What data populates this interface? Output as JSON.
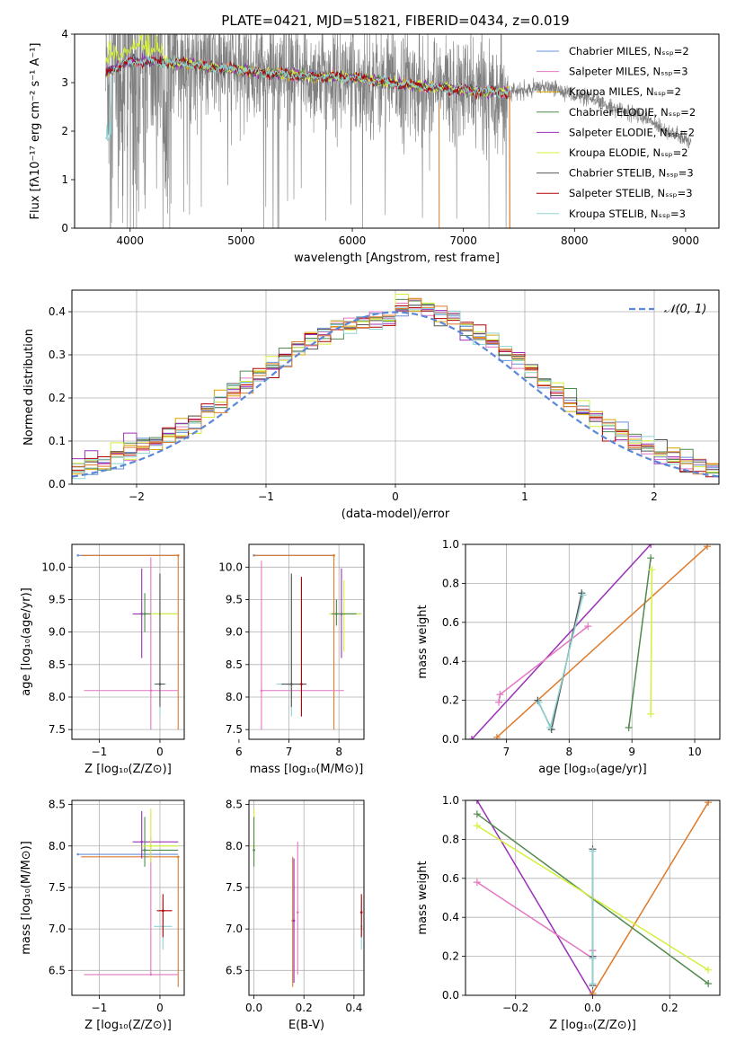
{
  "colors": {
    "chabrier_miles": "#6a8fd8",
    "salpeter_miles": "#e377c2",
    "kroupa_miles": "#d9a400",
    "chabrier_elodie": "#4f8a4f",
    "salpeter_elodie": "#9b30b8",
    "kroupa_elodie": "#d4ef3a",
    "chabrier_stelib": "#555555",
    "salpeter_stelib": "#b00000",
    "kroupa_stelib": "#8fd4d4",
    "orange": "#dd7a2b",
    "data": "#808080",
    "gauss": "#5b87d8"
  },
  "chart_data": [
    {
      "id": "spectrum",
      "type": "line",
      "title": "PLATE=0421, MJD=51821, FIBERID=0434, z=0.019",
      "xlabel": "wavelength [Angstrom, rest frame]",
      "ylabel": "Flux [fλ10⁻¹⁷ erg cm⁻² s⁻¹ A⁻¹]",
      "xlim": [
        3500,
        9300
      ],
      "ylim": [
        0,
        4
      ],
      "xticks": [
        "4000",
        "5000",
        "6000",
        "7000",
        "8000",
        "9000"
      ],
      "yticks": [
        "0",
        "1",
        "2",
        "3",
        "4"
      ],
      "grid": false,
      "legend_position": "top-right",
      "legend": [
        {
          "label": "Chabrier MILES, Nₛₛₚ=2",
          "color_key": "chabrier_miles"
        },
        {
          "label": "Salpeter MILES, Nₛₛₚ=3",
          "color_key": "salpeter_miles"
        },
        {
          "label": "Kroupa MILES, Nₛₛₚ=2",
          "color_key": "kroupa_miles"
        },
        {
          "label": "Chabrier ELODIE, Nₛₛₚ=2",
          "color_key": "chabrier_elodie"
        },
        {
          "label": "Salpeter ELODIE, Nₛₛₚ=2",
          "color_key": "salpeter_elodie"
        },
        {
          "label": "Kroupa ELODIE, Nₛₛₚ=2",
          "color_key": "kroupa_elodie"
        },
        {
          "label": "Chabrier STELIB, Nₛₛₚ=3",
          "color_key": "chabrier_stelib"
        },
        {
          "label": "Salpeter STELIB, Nₛₛₚ=3",
          "color_key": "salpeter_stelib"
        },
        {
          "label": "Kroupa STELIB, Nₛₛₚ=3",
          "color_key": "kroupa_stelib"
        }
      ],
      "data_range": [
        3780,
        9050
      ],
      "model_range": [
        3780,
        7420
      ],
      "continuum": [
        [
          3780,
          3.2
        ],
        [
          4000,
          3.45
        ],
        [
          4500,
          3.4
        ],
        [
          5000,
          3.25
        ],
        [
          5500,
          3.15
        ],
        [
          6000,
          3.1
        ],
        [
          6500,
          2.95
        ],
        [
          7000,
          2.85
        ],
        [
          7400,
          2.8
        ],
        [
          7800,
          2.9
        ],
        [
          8200,
          2.6
        ],
        [
          8600,
          2.3
        ],
        [
          9050,
          1.75
        ]
      ]
    },
    {
      "id": "residuals",
      "type": "line",
      "xlabel": "(data-model)/error",
      "ylabel": "Normed distribution",
      "xlim": [
        -2.5,
        2.5
      ],
      "ylim": [
        0,
        0.45
      ],
      "xticks": [
        "−2",
        "−1",
        "0",
        "1",
        "2"
      ],
      "yticks": [
        "0.0",
        "0.1",
        "0.2",
        "0.3",
        "0.4"
      ],
      "grid": true,
      "legend_position": "top-right",
      "legend": [
        {
          "label": "𝒩(0, 1)",
          "color_key": "gauss"
        }
      ],
      "bin_width": 0.1
    },
    {
      "id": "age_vs_Z",
      "type": "errorbar",
      "xlabel": "Z [log₁₀(Z/Z⊙)]",
      "ylabel": "age  [log₁₀(age/yr)]",
      "xlim": [
        -1.45,
        0.4
      ],
      "ylim": [
        7.35,
        10.35
      ],
      "xticks": [
        "−1",
        "0"
      ],
      "yticks": [
        "7.5",
        "8.0",
        "8.5",
        "9.0",
        "9.5",
        "10.0"
      ],
      "grid": true,
      "points": [
        {
          "c": "chabrier_miles",
          "x": -1.35,
          "x0": -1.35,
          "x1": 0.3,
          "y": 10.18,
          "y0": 10.18,
          "y1": 10.18
        },
        {
          "c": "orange",
          "x": 0.3,
          "x0": -1.3,
          "x1": 0.3,
          "y": 10.18,
          "y0": 7.5,
          "y1": 10.18
        },
        {
          "c": "salpeter_miles",
          "x": -0.15,
          "x0": -1.25,
          "x1": 0.3,
          "y": 8.1,
          "y0": 7.5,
          "y1": 10.15
        },
        {
          "c": "salpeter_elodie",
          "x": -0.3,
          "x0": -0.45,
          "x1": -0.15,
          "y": 9.28,
          "y0": 8.6,
          "y1": 9.98
        },
        {
          "c": "chabrier_elodie",
          "x": -0.25,
          "x0": -0.3,
          "x1": 0.3,
          "y": 9.28,
          "y0": 9.0,
          "y1": 9.6
        },
        {
          "c": "kroupa_elodie",
          "x": 0.0,
          "x0": -0.15,
          "x1": 0.3,
          "y": 9.28,
          "y0": 8.9,
          "y1": 9.9
        },
        {
          "c": "kroupa_stelib",
          "x": 0.0,
          "x0": -0.1,
          "x1": 0.1,
          "y": 8.2,
          "y0": 7.7,
          "y1": 9.85
        },
        {
          "c": "chabrier_stelib",
          "x": 0.0,
          "x0": -0.08,
          "x1": 0.08,
          "y": 8.2,
          "y0": 7.85,
          "y1": 9.9
        }
      ]
    },
    {
      "id": "age_vs_mass",
      "type": "errorbar",
      "xlabel": "mass [log₁₀(M/M⊙)]",
      "ylabel": "",
      "xlim": [
        6.2,
        8.5
      ],
      "ylim": [
        7.35,
        10.35
      ],
      "xticks": [
        "6",
        "7",
        "8"
      ],
      "yticks": [
        "7.5",
        "8.0",
        "8.5",
        "9.0",
        "9.5",
        "10.0"
      ],
      "grid": true,
      "points": [
        {
          "c": "chabrier_miles",
          "x": 6.3,
          "x0": 6.3,
          "x1": 7.9,
          "y": 10.18,
          "y0": 10.18,
          "y1": 10.18
        },
        {
          "c": "orange",
          "x": 7.9,
          "x0": 6.3,
          "x1": 7.9,
          "y": 10.18,
          "y0": 7.5,
          "y1": 10.18
        },
        {
          "c": "salpeter_miles",
          "x": 6.45,
          "x0": 6.45,
          "x1": 8.1,
          "y": 8.1,
          "y0": 7.5,
          "y1": 10.1
        },
        {
          "c": "salpeter_elodie",
          "x": 8.05,
          "x0": 7.85,
          "x1": 8.45,
          "y": 9.28,
          "y0": 8.6,
          "y1": 9.98
        },
        {
          "c": "kroupa_elodie",
          "x": 8.1,
          "x0": 7.8,
          "x1": 8.45,
          "y": 9.28,
          "y0": 8.7,
          "y1": 9.8
        },
        {
          "c": "chabrier_elodie",
          "x": 7.95,
          "x0": 7.85,
          "x1": 8.35,
          "y": 9.28,
          "y0": 9.1,
          "y1": 9.5
        },
        {
          "c": "kroupa_stelib",
          "x": 7.05,
          "x0": 6.75,
          "x1": 7.35,
          "y": 8.2,
          "y0": 7.7,
          "y1": 9.85
        },
        {
          "c": "chabrier_stelib",
          "x": 7.05,
          "x0": 6.85,
          "x1": 7.35,
          "y": 8.2,
          "y0": 7.85,
          "y1": 9.9
        },
        {
          "c": "salpeter_stelib",
          "x": 7.25,
          "x0": 7.25,
          "x1": 7.25,
          "y": 8.2,
          "y0": 7.7,
          "y1": 9.85
        }
      ]
    },
    {
      "id": "weight_vs_age",
      "type": "line",
      "xlabel": "age  [log₁₀(age/yr)]",
      "ylabel": "mass weight",
      "xlim": [
        6.35,
        10.4
      ],
      "ylim": [
        0,
        1
      ],
      "xticks": [
        "7",
        "8",
        "9",
        "10"
      ],
      "yticks": [
        "0.0",
        "0.2",
        "0.4",
        "0.6",
        "0.8",
        "1.0"
      ],
      "grid": true,
      "series": [
        {
          "c": "salpeter_elodie",
          "x": [
            6.45,
            9.3
          ],
          "y": [
            0.0,
            1.0
          ]
        },
        {
          "c": "orange",
          "x": [
            6.85,
            10.2
          ],
          "y": [
            0.01,
            0.99
          ]
        },
        {
          "c": "salpeter_miles",
          "x": [
            6.88,
            6.9,
            8.3
          ],
          "y": [
            0.19,
            0.23,
            0.58
          ]
        },
        {
          "c": "chabrier_stelib",
          "x": [
            7.5,
            7.72,
            8.2
          ],
          "y": [
            0.2,
            0.05,
            0.75
          ]
        },
        {
          "c": "kroupa_stelib",
          "x": [
            7.52,
            7.7,
            8.22
          ],
          "y": [
            0.19,
            0.06,
            0.74
          ]
        },
        {
          "c": "chabrier_elodie",
          "x": [
            8.95,
            9.3
          ],
          "y": [
            0.06,
            0.93
          ]
        },
        {
          "c": "kroupa_elodie",
          "x": [
            9.3,
            9.32
          ],
          "y": [
            0.13,
            0.87
          ]
        }
      ]
    },
    {
      "id": "mass_vs_Z",
      "type": "errorbar",
      "xlabel": "Z [log₁₀(Z/Z⊙)]",
      "ylabel": "mass [log₁₀(M/M⊙)]",
      "xlim": [
        -1.45,
        0.4
      ],
      "ylim": [
        6.2,
        8.55
      ],
      "xticks": [
        "−1",
        "0"
      ],
      "yticks": [
        "6.5",
        "7.0",
        "7.5",
        "8.0",
        "8.5"
      ],
      "grid": true,
      "points": [
        {
          "c": "chabrier_miles",
          "x": -1.35,
          "x0": -1.35,
          "x1": 0.3,
          "y": 7.9,
          "y0": 7.9,
          "y1": 7.9
        },
        {
          "c": "orange",
          "x": 0.3,
          "x0": -1.3,
          "x1": 0.3,
          "y": 7.87,
          "y0": 6.3,
          "y1": 7.87
        },
        {
          "c": "salpeter_miles",
          "x": -0.15,
          "x0": -1.25,
          "x1": 0.3,
          "y": 6.45,
          "y0": 6.45,
          "y1": 8.1
        },
        {
          "c": "salpeter_elodie",
          "x": -0.3,
          "x0": -0.45,
          "x1": 0.3,
          "y": 8.05,
          "y0": 7.85,
          "y1": 8.42
        },
        {
          "c": "chabrier_elodie",
          "x": -0.25,
          "x0": -0.3,
          "x1": 0.3,
          "y": 7.95,
          "y0": 7.75,
          "y1": 8.35
        },
        {
          "c": "kroupa_elodie",
          "x": -0.15,
          "x0": -0.3,
          "x1": 0.3,
          "y": 8.0,
          "y0": 7.8,
          "y1": 8.45
        },
        {
          "c": "kroupa_stelib",
          "x": 0.05,
          "x0": -0.1,
          "x1": 0.2,
          "y": 7.03,
          "y0": 6.75,
          "y1": 7.35
        },
        {
          "c": "salpeter_stelib",
          "x": 0.05,
          "x0": -0.05,
          "x1": 0.2,
          "y": 7.22,
          "y0": 6.9,
          "y1": 7.42
        }
      ]
    },
    {
      "id": "mass_vs_ebv",
      "type": "errorbar",
      "xlabel": "E(B-V)",
      "ylabel": "",
      "xlim": [
        -0.02,
        0.44
      ],
      "ylim": [
        6.2,
        8.55
      ],
      "xticks": [
        "0.0",
        "0.2",
        "0.4"
      ],
      "yticks": [
        "6.5",
        "7.0",
        "7.5",
        "8.0",
        "8.5"
      ],
      "grid": true,
      "points": [
        {
          "c": "kroupa_elodie",
          "x": 0.0,
          "x0": 0.0,
          "x1": 0.0,
          "y": 8.0,
          "y0": 7.8,
          "y1": 8.45
        },
        {
          "c": "chabrier_elodie",
          "x": 0.0,
          "x0": 0.0,
          "x1": 0.0,
          "y": 7.95,
          "y0": 7.75,
          "y1": 8.35
        },
        {
          "c": "orange",
          "x": 0.155,
          "x0": 0.155,
          "x1": 0.155,
          "y": 7.1,
          "y0": 6.3,
          "y1": 7.87
        },
        {
          "c": "salpeter_elodie",
          "x": 0.16,
          "x0": 0.16,
          "x1": 0.16,
          "y": 7.1,
          "y0": 6.35,
          "y1": 7.85
        },
        {
          "c": "salpeter_miles",
          "x": 0.175,
          "x0": 0.175,
          "x1": 0.175,
          "y": 7.2,
          "y0": 6.45,
          "y1": 8.05
        },
        {
          "c": "kroupa_stelib",
          "x": 0.43,
          "x0": 0.43,
          "x1": 0.43,
          "y": 7.03,
          "y0": 6.75,
          "y1": 7.35
        },
        {
          "c": "salpeter_stelib",
          "x": 0.43,
          "x0": 0.43,
          "x1": 0.43,
          "y": 7.2,
          "y0": 6.9,
          "y1": 7.42
        }
      ]
    },
    {
      "id": "weight_vs_Z",
      "type": "line",
      "xlabel": "Z [log₁₀(Z/Z⊙)]",
      "ylabel": "mass weight",
      "xlim": [
        -0.33,
        0.33
      ],
      "ylim": [
        0,
        1
      ],
      "xticks": [
        "−0.2",
        "0.0",
        "0.2"
      ],
      "yticks": [
        "0.0",
        "0.2",
        "0.4",
        "0.6",
        "0.8",
        "1.0"
      ],
      "grid": true,
      "series": [
        {
          "c": "salpeter_elodie",
          "x": [
            -0.3,
            0.0
          ],
          "y": [
            1.0,
            0.0
          ]
        },
        {
          "c": "orange",
          "x": [
            0.0,
            0.3
          ],
          "y": [
            0.01,
            0.99
          ]
        },
        {
          "c": "chabrier_elodie",
          "x": [
            -0.3,
            0.3
          ],
          "y": [
            0.93,
            0.06
          ]
        },
        {
          "c": "kroupa_elodie",
          "x": [
            -0.3,
            0.3
          ],
          "y": [
            0.87,
            0.13
          ]
        },
        {
          "c": "salpeter_miles",
          "x": [
            -0.3,
            0.0,
            0.0
          ],
          "y": [
            0.58,
            0.19,
            0.23
          ]
        },
        {
          "c": "chabrier_stelib",
          "x": [
            0.0,
            0.0,
            0.0
          ],
          "y": [
            0.75,
            0.2,
            0.05
          ]
        },
        {
          "c": "kroupa_stelib",
          "x": [
            0.0,
            0.0,
            0.0
          ],
          "y": [
            0.74,
            0.19,
            0.06
          ]
        }
      ]
    }
  ]
}
